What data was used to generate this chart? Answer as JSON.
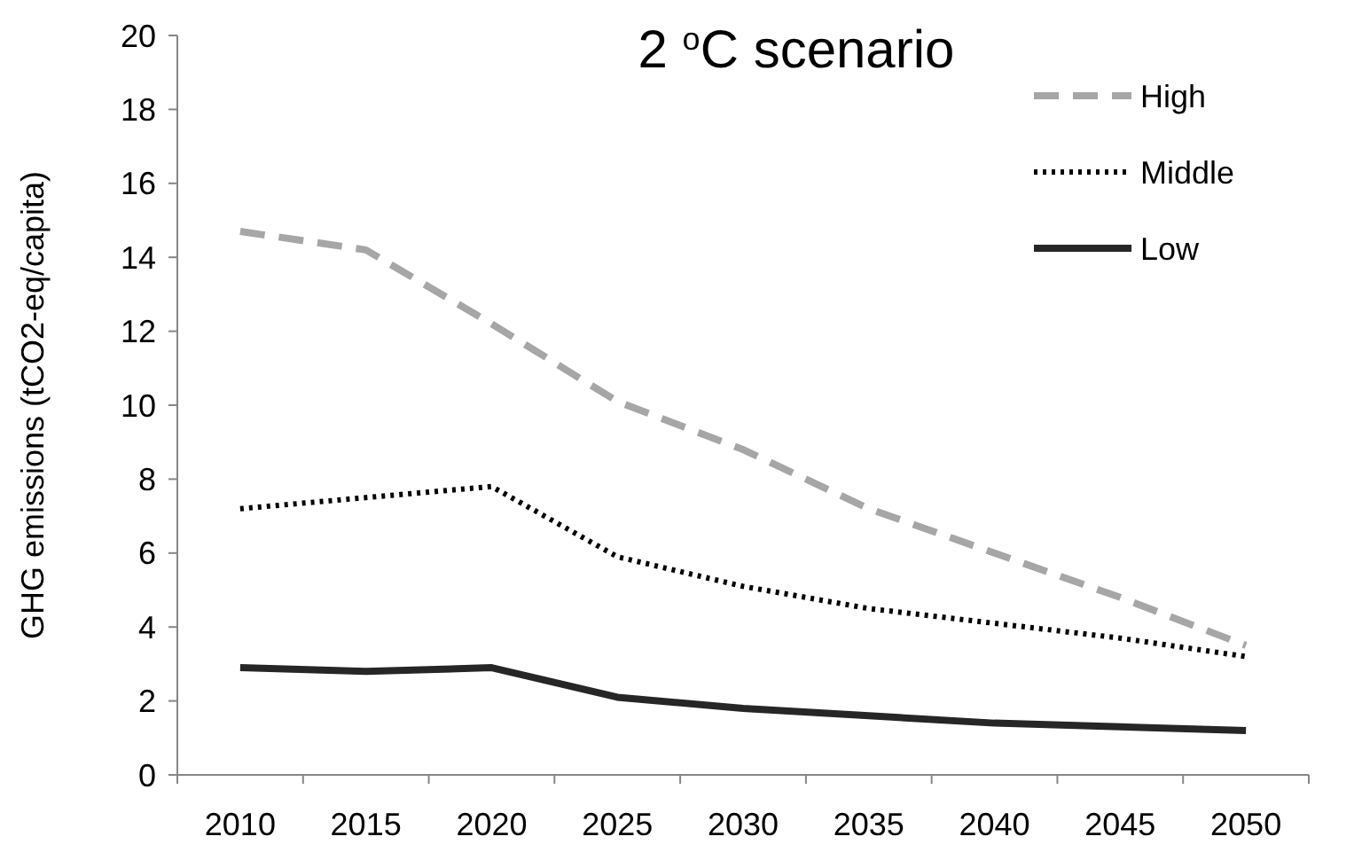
{
  "chart_data": {
    "type": "line",
    "title": "2 $^{o}$C scenario",
    "ylabel": "GHG emissions (tCO2-eq/capita)",
    "categories": [
      "2010",
      "2015",
      "2020",
      "2025",
      "2030",
      "2035",
      "2040",
      "2045",
      "2050"
    ],
    "ylim": [
      0,
      20
    ],
    "yticks": [
      0,
      2,
      4,
      6,
      8,
      10,
      12,
      14,
      16,
      18,
      20
    ],
    "grid": false,
    "legend": "top right",
    "marker": "none",
    "series": [
      {
        "name": "High",
        "color": "#a6a6a6",
        "line_style": "dashed",
        "values": [
          14.7,
          14.2,
          12.2,
          10.1,
          8.8,
          7.2,
          6.0,
          4.8,
          3.5
        ]
      },
      {
        "name": "Middle",
        "color": "#000000",
        "line_style": "dotted",
        "values": [
          7.2,
          7.5,
          7.8,
          5.9,
          5.1,
          4.5,
          4.1,
          3.7,
          3.2
        ]
      },
      {
        "name": "Low",
        "color": "#262626",
        "line_style": "solid",
        "values": [
          2.9,
          2.8,
          2.9,
          2.1,
          1.8,
          1.6,
          1.4,
          1.3,
          1.2
        ]
      }
    ]
  }
}
